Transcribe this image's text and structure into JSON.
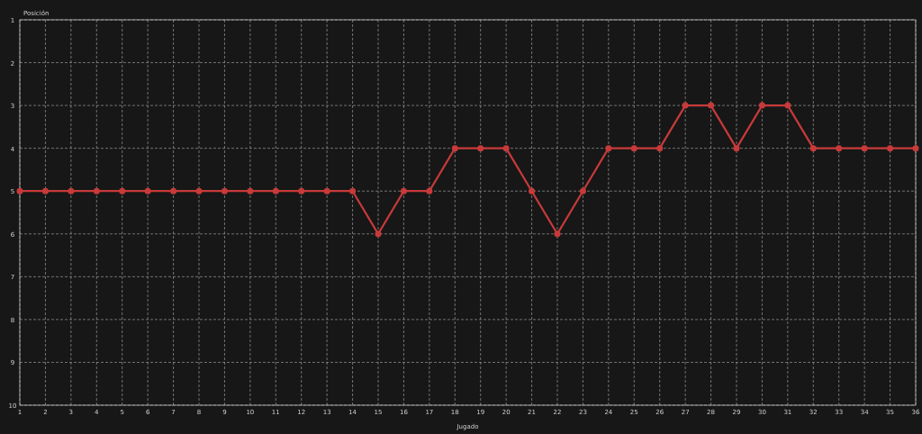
{
  "chart_data": {
    "type": "line",
    "xlabel": "Jugado",
    "ylabel": "Posición",
    "x": [
      1,
      2,
      3,
      4,
      5,
      6,
      7,
      8,
      9,
      10,
      11,
      12,
      13,
      14,
      15,
      16,
      17,
      18,
      19,
      20,
      21,
      22,
      23,
      24,
      25,
      26,
      27,
      28,
      29,
      30,
      31,
      32,
      33,
      34,
      35,
      36
    ],
    "series": [
      {
        "color": "#c83a3a",
        "values": [
          5,
          5,
          5,
          5,
          5,
          5,
          5,
          5,
          5,
          5,
          5,
          5,
          5,
          5,
          6,
          5,
          5,
          4,
          4,
          4,
          5,
          6,
          5,
          4,
          4,
          4,
          3,
          3,
          4,
          3,
          3,
          4,
          4,
          4,
          4,
          4
        ]
      }
    ],
    "xlim": [
      1,
      36
    ],
    "xticks": [
      1,
      2,
      3,
      4,
      5,
      6,
      7,
      8,
      9,
      10,
      11,
      12,
      13,
      14,
      15,
      16,
      17,
      18,
      19,
      20,
      21,
      22,
      23,
      24,
      25,
      26,
      27,
      28,
      29,
      30,
      31,
      32,
      33,
      34,
      35,
      36
    ],
    "ylim": [
      10,
      1
    ],
    "yticks": [
      1,
      2,
      3,
      4,
      5,
      6,
      7,
      8,
      9,
      10
    ],
    "grid": true,
    "marker": "circle",
    "line_style": "solid"
  }
}
